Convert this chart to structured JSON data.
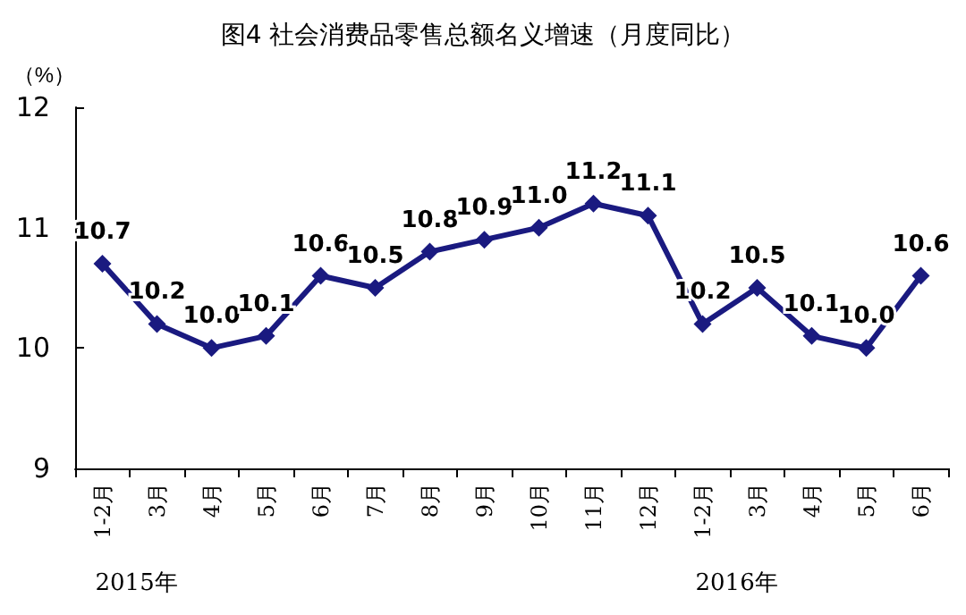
{
  "chart_data": {
    "type": "line",
    "title": "图4 社会消费品零售总额名义增速（月度同比）",
    "ylabel": "（%）",
    "categories": [
      "1-2月",
      "3月",
      "4月",
      "5月",
      "6月",
      "7月",
      "8月",
      "9月",
      "10月",
      "11月",
      "12月",
      "1-2月",
      "3月",
      "4月",
      "5月",
      "6月"
    ],
    "series": [
      {
        "color": "#1a1a80",
        "values": [
          10.7,
          10.2,
          10.0,
          10.1,
          10.6,
          10.5,
          10.8,
          10.9,
          11.0,
          11.2,
          11.1,
          10.2,
          10.5,
          10.1,
          10.0,
          10.6
        ],
        "value_labels": [
          "10.7",
          "10.2",
          "10.0",
          "10.1",
          "10.6",
          "10.5",
          "10.8",
          "10.9",
          "11.0",
          "11.2",
          "11.1",
          "10.2",
          "10.5",
          "10.1",
          "10.0",
          "10.6"
        ]
      }
    ],
    "ylim": [
      9,
      12
    ],
    "yticks": [
      9,
      10,
      11,
      12
    ],
    "grid": false,
    "marker": "diamond",
    "line_style": "solid",
    "annotations": [
      "2015年",
      "2016年"
    ]
  }
}
